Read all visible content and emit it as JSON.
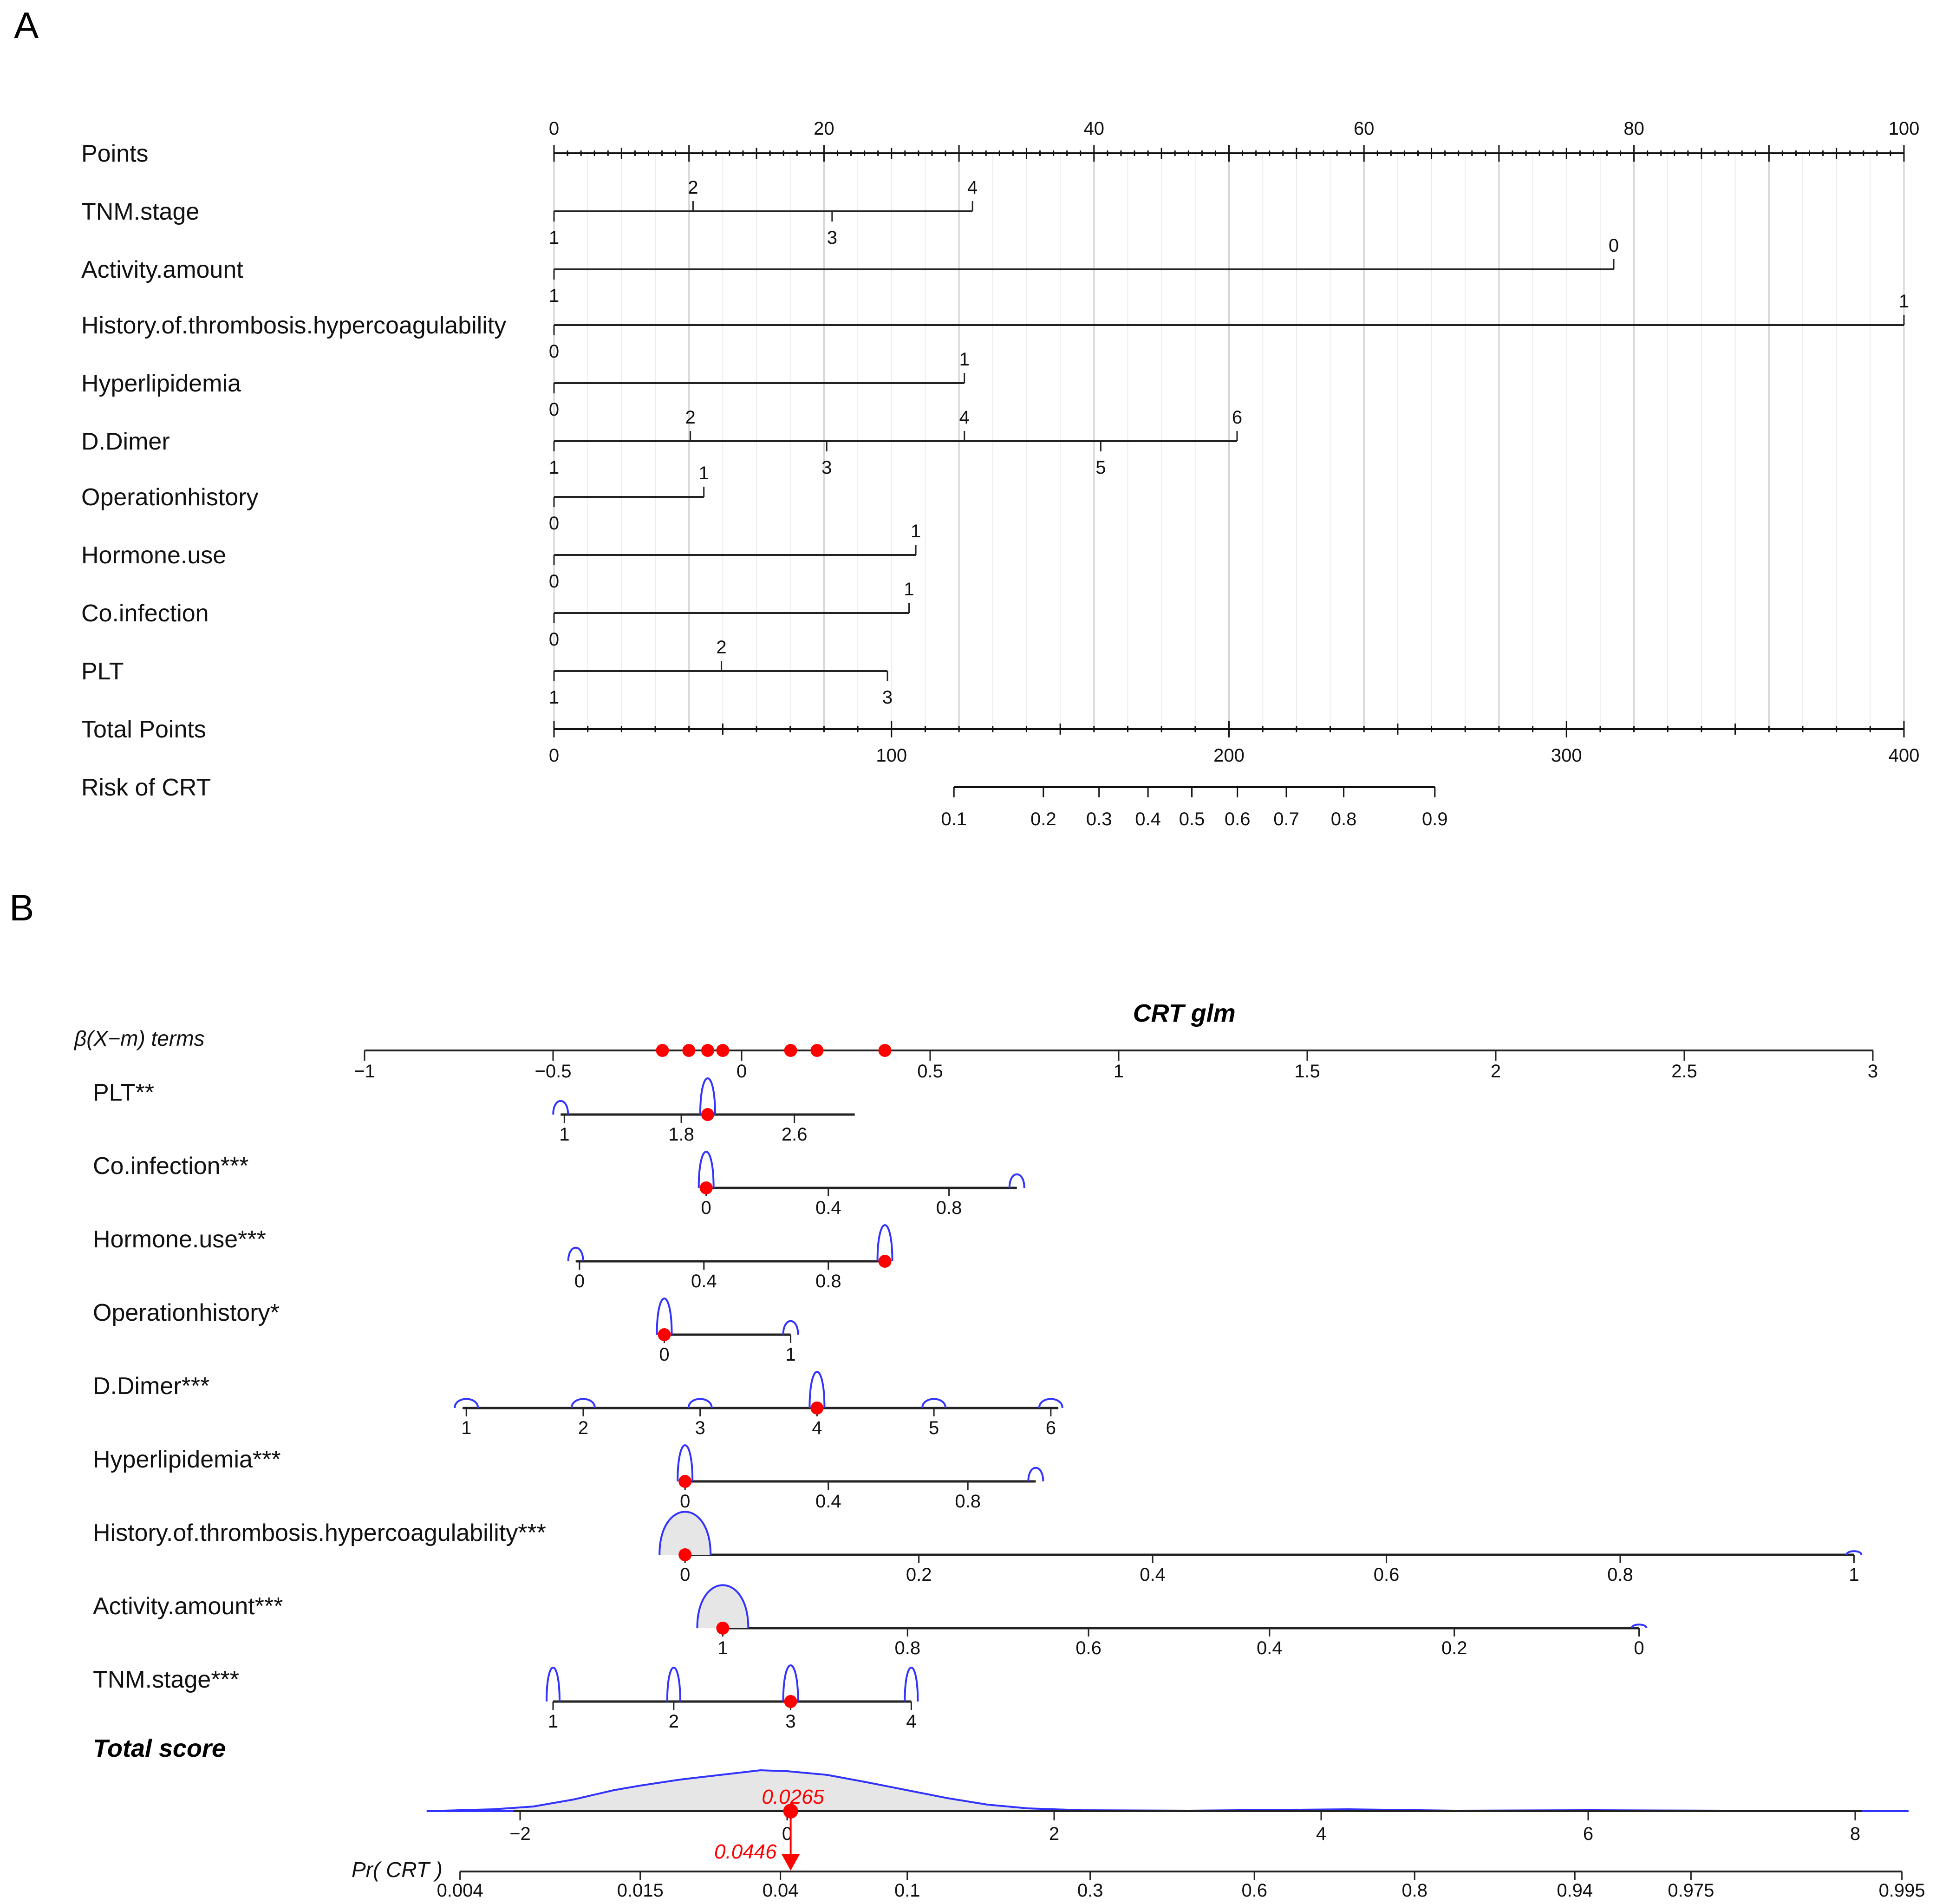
{
  "chart_data": [
    {
      "type": "nomogram",
      "panel": "A",
      "points_axis": {
        "label": "Points",
        "range": [
          0,
          100
        ],
        "major_ticks": [
          "0",
          "20",
          "40",
          "60",
          "80",
          "100"
        ],
        "major_values": [
          0,
          20,
          40,
          60,
          80,
          100
        ]
      },
      "variables": [
        {
          "name": "TNM.stage",
          "scale_end": 31,
          "ticks": [
            {
              "label": "1",
              "pts": 0,
              "side": "below"
            },
            {
              "label": "2",
              "pts": 10.3,
              "side": "above"
            },
            {
              "label": "3",
              "pts": 20.6,
              "side": "below"
            },
            {
              "label": "4",
              "pts": 31,
              "side": "above"
            }
          ]
        },
        {
          "name": "Activity.amount",
          "scale_end": 78.5,
          "ticks": [
            {
              "label": "1",
              "pts": 0,
              "side": "below"
            },
            {
              "label": "0",
              "pts": 78.5,
              "side": "above"
            }
          ]
        },
        {
          "name": "History.of.thrombosis.hypercoagulability",
          "scale_end": 100,
          "ticks": [
            {
              "label": "0",
              "pts": 0,
              "side": "below"
            },
            {
              "label": "1",
              "pts": 100,
              "side": "above"
            }
          ]
        },
        {
          "name": "Hyperlipidemia",
          "scale_end": 30.4,
          "ticks": [
            {
              "label": "0",
              "pts": 0,
              "side": "below"
            },
            {
              "label": "1",
              "pts": 30.4,
              "side": "above"
            }
          ]
        },
        {
          "name": "D.Dimer",
          "scale_end": 50.6,
          "ticks": [
            {
              "label": "1",
              "pts": 0,
              "side": "below"
            },
            {
              "label": "2",
              "pts": 10.1,
              "side": "above"
            },
            {
              "label": "3",
              "pts": 20.2,
              "side": "below"
            },
            {
              "label": "4",
              "pts": 30.4,
              "side": "above"
            },
            {
              "label": "5",
              "pts": 40.5,
              "side": "below"
            },
            {
              "label": "6",
              "pts": 50.6,
              "side": "above"
            }
          ]
        },
        {
          "name": "Operationhistory",
          "scale_end": 11.1,
          "ticks": [
            {
              "label": "0",
              "pts": 0,
              "side": "below"
            },
            {
              "label": "1",
              "pts": 11.1,
              "side": "above"
            }
          ]
        },
        {
          "name": "Hormone.use",
          "scale_end": 26.8,
          "ticks": [
            {
              "label": "0",
              "pts": 0,
              "side": "below"
            },
            {
              "label": "1",
              "pts": 26.8,
              "side": "above"
            }
          ]
        },
        {
          "name": "Co.infection",
          "scale_end": 26.3,
          "ticks": [
            {
              "label": "0",
              "pts": 0,
              "side": "below"
            },
            {
              "label": "1",
              "pts": 26.3,
              "side": "above"
            }
          ]
        },
        {
          "name": "PLT",
          "scale_end": 24.7,
          "ticks": [
            {
              "label": "1",
              "pts": 0,
              "side": "below"
            },
            {
              "label": "2",
              "pts": 12.4,
              "side": "above"
            },
            {
              "label": "3",
              "pts": 24.7,
              "side": "below"
            }
          ]
        }
      ],
      "total_points_axis": {
        "label": "Total Points",
        "range": [
          0,
          400
        ],
        "major_ticks": [
          "0",
          "100",
          "200",
          "300",
          "400"
        ],
        "major_values": [
          0,
          100,
          200,
          300,
          400
        ]
      },
      "risk_axis": {
        "label": "Risk of CRT",
        "ticks": [
          {
            "label": "0.1",
            "total_points": 118.5
          },
          {
            "label": "0.2",
            "total_points": 145
          },
          {
            "label": "0.3",
            "total_points": 161.5
          },
          {
            "label": "0.4",
            "total_points": 176
          },
          {
            "label": "0.5",
            "total_points": 189
          },
          {
            "label": "0.6",
            "total_points": 202.5
          },
          {
            "label": "0.7",
            "total_points": 217
          },
          {
            "label": "0.8",
            "total_points": 234
          },
          {
            "label": "0.9",
            "total_points": 261
          }
        ]
      }
    },
    {
      "type": "nomogram",
      "panel": "B",
      "title": "CRT glm",
      "beta_axis": {
        "label": "β(X−m) terms",
        "range": [
          -1,
          3
        ],
        "ticks": [
          "−1",
          "−0.5",
          "0",
          "0.5",
          "1",
          "1.5",
          "2",
          "2.5",
          "3"
        ],
        "tick_values": [
          -1,
          -0.5,
          0,
          0.5,
          1,
          1.5,
          2,
          2.5,
          3
        ],
        "points": [
          -0.21,
          -0.14,
          -0.09,
          -0.05,
          0.13,
          0.2,
          0.38
        ]
      },
      "variables": [
        {
          "name": "PLT**",
          "line": [
            -0.48,
            0.3
          ],
          "ticks": [
            {
              "label": "1",
              "beta": -0.47
            },
            {
              "label": "1.8",
              "beta": -0.16
            },
            {
              "label": "2.6",
              "beta": 0.14
            }
          ],
          "point": -0.09
        },
        {
          "name": "Co.infection***",
          "line": [
            -0.1,
            0.73
          ],
          "ticks": [
            {
              "label": "0",
              "beta": -0.094
            },
            {
              "label": "0.4",
              "beta": 0.23
            },
            {
              "label": "0.8",
              "beta": 0.55
            }
          ],
          "point": -0.094
        },
        {
          "name": "Hormone.use***",
          "line": [
            -0.44,
            0.38
          ],
          "ticks": [
            {
              "label": "0",
              "beta": -0.43
            },
            {
              "label": "0.4",
              "beta": -0.1
            },
            {
              "label": "0.8",
              "beta": 0.23
            }
          ],
          "point": 0.38
        },
        {
          "name": "Operationhistory*",
          "line": [
            -0.21,
            0.13
          ],
          "ticks": [
            {
              "label": "0",
              "beta": -0.205
            },
            {
              "label": "1",
              "beta": 0.13
            }
          ],
          "point": -0.205
        },
        {
          "name": "D.Dimer***",
          "line": [
            -0.74,
            0.84
          ],
          "ticks": [
            {
              "label": "1",
              "beta": -0.73
            },
            {
              "label": "2",
              "beta": -0.42
            },
            {
              "label": "3",
              "beta": -0.11
            },
            {
              "label": "4",
              "beta": 0.2
            },
            {
              "label": "5",
              "beta": 0.51
            },
            {
              "label": "6",
              "beta": 0.82
            }
          ],
          "point": 0.2
        },
        {
          "name": "Hyperlipidemia***",
          "line": [
            -0.15,
            0.78
          ],
          "ticks": [
            {
              "label": "0",
              "beta": -0.15
            },
            {
              "label": "0.4",
              "beta": 0.23
            },
            {
              "label": "0.8",
              "beta": 0.6
            }
          ],
          "point": -0.15
        },
        {
          "name": "History.of.thrombosis.hypercoagulability***",
          "line": [
            -0.15,
            2.95
          ],
          "ticks": [
            {
              "label": "0",
              "beta": -0.15
            },
            {
              "label": "0.2",
              "beta": 0.47
            },
            {
              "label": "0.4",
              "beta": 1.09
            },
            {
              "label": "0.6",
              "beta": 1.71
            },
            {
              "label": "0.8",
              "beta": 2.33
            },
            {
              "label": "1",
              "beta": 2.95
            }
          ],
          "point": -0.15
        },
        {
          "name": "Activity.amount***",
          "line": [
            -0.05,
            2.38
          ],
          "ticks": [
            {
              "label": "1",
              "beta": -0.05
            },
            {
              "label": "0.8",
              "beta": 0.44
            },
            {
              "label": "0.6",
              "beta": 0.92
            },
            {
              "label": "0.4",
              "beta": 1.4
            },
            {
              "label": "0.2",
              "beta": 1.89
            },
            {
              "label": "0",
              "beta": 2.38
            }
          ],
          "point": -0.05
        },
        {
          "name": "TNM.stage***",
          "line": [
            -0.5,
            0.45
          ],
          "ticks": [
            {
              "label": "1",
              "beta": -0.5
            },
            {
              "label": "2",
              "beta": -0.18
            },
            {
              "label": "3",
              "beta": 0.13
            },
            {
              "label": "4",
              "beta": 0.45
            }
          ],
          "point": 0.13
        }
      ],
      "total_score": {
        "label": "Total score",
        "range": [
          -2.7,
          8.4
        ],
        "ticks": [
          "−2",
          "0",
          "2",
          "4",
          "6",
          "8"
        ],
        "tick_values": [
          -2,
          0,
          2,
          4,
          6,
          8
        ],
        "point": 0.0265,
        "point_label": "0.0265"
      },
      "probability_axis": {
        "label": "Pr( CRT )",
        "ticks": [
          {
            "label": "0.004",
            "score": -2.45
          },
          {
            "label": "0.015",
            "score": -1.1
          },
          {
            "label": "0.04",
            "score": -0.05
          },
          {
            "label": "0.1",
            "score": 0.9
          },
          {
            "label": "0.3",
            "score": 2.27
          },
          {
            "label": "0.6",
            "score": 3.5
          },
          {
            "label": "0.8",
            "score": 4.7
          },
          {
            "label": "0.94",
            "score": 5.9
          },
          {
            "label": "0.975",
            "score": 6.77
          },
          {
            "label": "0.995",
            "score": 8.35
          }
        ],
        "point_label": "0.0446"
      }
    }
  ]
}
